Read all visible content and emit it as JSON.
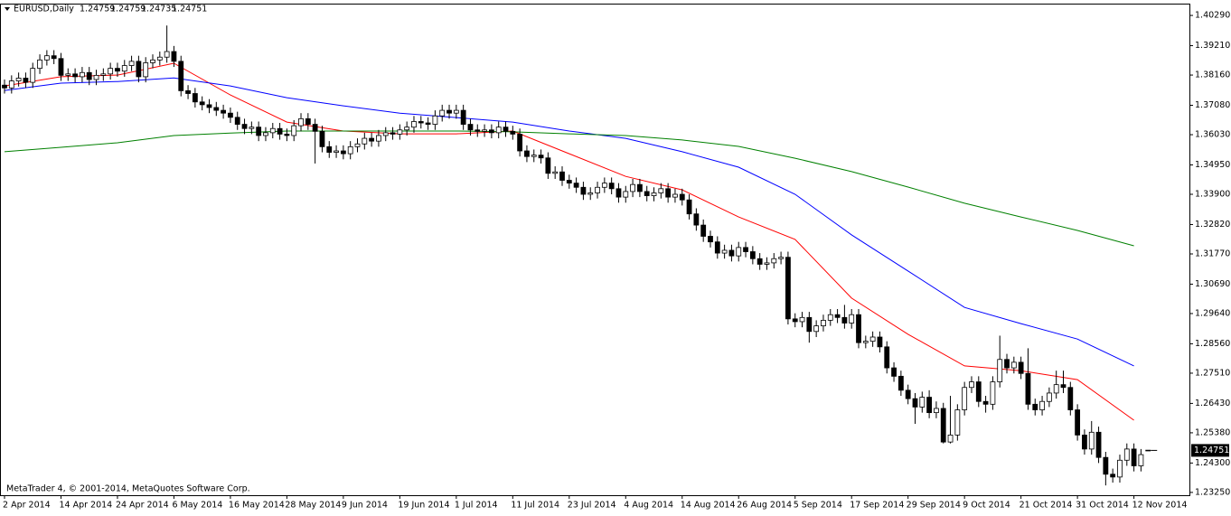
{
  "chart_data": {
    "type": "candlestick",
    "title": "EURUSD,Daily",
    "copyright": "MetaTrader 4, © 2001-2014, MetaQuotes Software Corp.",
    "categories": [
      "2 Apr 2014",
      null,
      null,
      null,
      null,
      null,
      null,
      null,
      "14 Apr 2014",
      null,
      null,
      null,
      null,
      null,
      null,
      null,
      "24 Apr 2014",
      null,
      null,
      null,
      null,
      null,
      null,
      null,
      "6 May 2014",
      null,
      null,
      null,
      null,
      null,
      null,
      null,
      "16 May 2014",
      null,
      null,
      null,
      null,
      null,
      null,
      null,
      "28 May 2014",
      null,
      null,
      null,
      null,
      null,
      null,
      null,
      "9 Jun 2014",
      null,
      null,
      null,
      null,
      null,
      null,
      null,
      "19 Jun 2014",
      null,
      null,
      null,
      null,
      null,
      null,
      null,
      "1 Jul 2014",
      null,
      null,
      null,
      null,
      null,
      null,
      null,
      "11 Jul 2014",
      null,
      null,
      null,
      null,
      null,
      null,
      null,
      "23 Jul 2014",
      null,
      null,
      null,
      null,
      null,
      null,
      null,
      "4 Aug 2014",
      null,
      null,
      null,
      null,
      null,
      null,
      null,
      "14 Aug 2014",
      null,
      null,
      null,
      null,
      null,
      null,
      null,
      "26 Aug 2014",
      null,
      null,
      null,
      null,
      null,
      null,
      null,
      "5 Sep 2014",
      null,
      null,
      null,
      null,
      null,
      null,
      null,
      "17 Sep 2014",
      null,
      null,
      null,
      null,
      null,
      null,
      null,
      "29 Sep 2014",
      null,
      null,
      null,
      null,
      null,
      null,
      null,
      "9 Oct 2014",
      null,
      null,
      null,
      null,
      null,
      null,
      null,
      "21 Oct 2014",
      null,
      null,
      null,
      null,
      null,
      null,
      null,
      "31 Oct 2014",
      null,
      null,
      null,
      null,
      null,
      null,
      null,
      "12 Nov 2014",
      null,
      null
    ],
    "candles": [
      [
        1.378,
        1.38,
        1.375,
        1.377
      ],
      [
        1.377,
        1.3815,
        1.375,
        1.3795
      ],
      [
        1.3795,
        1.3825,
        1.3775,
        1.3805
      ],
      [
        1.3805,
        1.3825,
        1.377,
        1.379
      ],
      [
        1.379,
        1.386,
        1.377,
        1.384
      ],
      [
        1.384,
        1.389,
        1.382,
        1.387
      ],
      [
        1.387,
        1.3905,
        1.385,
        1.3885
      ],
      [
        1.3885,
        1.3905,
        1.3855,
        1.3875
      ],
      [
        1.3875,
        1.3895,
        1.3795,
        1.3815
      ],
      [
        1.3815,
        1.384,
        1.3795,
        1.382
      ],
      [
        1.382,
        1.384,
        1.379,
        1.381
      ],
      [
        1.381,
        1.3845,
        1.379,
        1.3825
      ],
      [
        1.3825,
        1.3845,
        1.378,
        1.38
      ],
      [
        1.38,
        1.3835,
        1.378,
        1.3815
      ],
      [
        1.3815,
        1.384,
        1.3795,
        1.382
      ],
      [
        1.382,
        1.386,
        1.38,
        1.384
      ],
      [
        1.384,
        1.386,
        1.381,
        1.383
      ],
      [
        1.383,
        1.387,
        1.381,
        1.385
      ],
      [
        1.385,
        1.3885,
        1.383,
        1.3865
      ],
      [
        1.3865,
        1.3885,
        1.379,
        1.381
      ],
      [
        1.381,
        1.388,
        1.379,
        1.386
      ],
      [
        1.386,
        1.389,
        1.384,
        1.387
      ],
      [
        1.387,
        1.39,
        1.385,
        1.388
      ],
      [
        1.388,
        1.3993,
        1.386,
        1.39
      ],
      [
        1.39,
        1.392,
        1.3845,
        1.3865
      ],
      [
        1.3865,
        1.3885,
        1.374,
        1.376
      ],
      [
        1.376,
        1.378,
        1.373,
        1.375
      ],
      [
        1.375,
        1.377,
        1.37,
        1.372
      ],
      [
        1.372,
        1.374,
        1.369,
        1.371
      ],
      [
        1.371,
        1.373,
        1.368,
        1.37
      ],
      [
        1.37,
        1.372,
        1.367,
        1.369
      ],
      [
        1.369,
        1.371,
        1.366,
        1.368
      ],
      [
        1.368,
        1.37,
        1.3645,
        1.3665
      ],
      [
        1.3665,
        1.3685,
        1.362,
        1.364
      ],
      [
        1.364,
        1.366,
        1.3605,
        1.3625
      ],
      [
        1.3625,
        1.365,
        1.3605,
        1.363
      ],
      [
        1.363,
        1.365,
        1.358,
        1.36
      ],
      [
        1.36,
        1.363,
        1.358,
        1.361
      ],
      [
        1.361,
        1.3645,
        1.359,
        1.3625
      ],
      [
        1.3625,
        1.3645,
        1.3585,
        1.3605
      ],
      [
        1.3605,
        1.3625,
        1.358,
        1.36
      ],
      [
        1.36,
        1.3655,
        1.358,
        1.3635
      ],
      [
        1.3635,
        1.368,
        1.3615,
        1.366
      ],
      [
        1.366,
        1.368,
        1.362,
        1.364
      ],
      [
        1.364,
        1.366,
        1.35,
        1.3615
      ],
      [
        1.3615,
        1.3635,
        1.354,
        1.356
      ],
      [
        1.356,
        1.358,
        1.352,
        1.354
      ],
      [
        1.354,
        1.3565,
        1.352,
        1.3545
      ],
      [
        1.3545,
        1.3565,
        1.3515,
        1.3535
      ],
      [
        1.3535,
        1.358,
        1.3515,
        1.356
      ],
      [
        1.356,
        1.359,
        1.354,
        1.357
      ],
      [
        1.357,
        1.361,
        1.355,
        1.359
      ],
      [
        1.359,
        1.361,
        1.356,
        1.358
      ],
      [
        1.358,
        1.362,
        1.356,
        1.36
      ],
      [
        1.36,
        1.363,
        1.358,
        1.361
      ],
      [
        1.361,
        1.363,
        1.3585,
        1.3605
      ],
      [
        1.3605,
        1.364,
        1.3585,
        1.362
      ],
      [
        1.362,
        1.365,
        1.36,
        1.363
      ],
      [
        1.363,
        1.367,
        1.361,
        1.365
      ],
      [
        1.365,
        1.367,
        1.3625,
        1.3645
      ],
      [
        1.3645,
        1.3665,
        1.362,
        1.364
      ],
      [
        1.364,
        1.369,
        1.362,
        1.367
      ],
      [
        1.367,
        1.371,
        1.365,
        1.369
      ],
      [
        1.369,
        1.371,
        1.366,
        1.368
      ],
      [
        1.368,
        1.371,
        1.366,
        1.369
      ],
      [
        1.369,
        1.371,
        1.362,
        1.364
      ],
      [
        1.364,
        1.366,
        1.36,
        1.362
      ],
      [
        1.362,
        1.364,
        1.3595,
        1.3615
      ],
      [
        1.3615,
        1.364,
        1.3595,
        1.362
      ],
      [
        1.362,
        1.364,
        1.359,
        1.361
      ],
      [
        1.361,
        1.365,
        1.359,
        1.363
      ],
      [
        1.363,
        1.365,
        1.3595,
        1.3615
      ],
      [
        1.3615,
        1.3635,
        1.3585,
        1.3605
      ],
      [
        1.3605,
        1.3625,
        1.3525,
        1.3545
      ],
      [
        1.3545,
        1.3565,
        1.3505,
        1.3525
      ],
      [
        1.3525,
        1.355,
        1.3505,
        1.353
      ],
      [
        1.353,
        1.355,
        1.35,
        1.352
      ],
      [
        1.352,
        1.354,
        1.3445,
        1.3465
      ],
      [
        1.3465,
        1.349,
        1.3445,
        1.347
      ],
      [
        1.347,
        1.349,
        1.342,
        1.344
      ],
      [
        1.344,
        1.346,
        1.341,
        1.343
      ],
      [
        1.343,
        1.345,
        1.3395,
        1.3415
      ],
      [
        1.3415,
        1.3435,
        1.337,
        1.339
      ],
      [
        1.339,
        1.3415,
        1.337,
        1.3395
      ],
      [
        1.3395,
        1.3435,
        1.3375,
        1.3415
      ],
      [
        1.3415,
        1.345,
        1.3395,
        1.343
      ],
      [
        1.343,
        1.345,
        1.339,
        1.341
      ],
      [
        1.341,
        1.343,
        1.336,
        1.338
      ],
      [
        1.338,
        1.342,
        1.336,
        1.34
      ],
      [
        1.34,
        1.3445,
        1.338,
        1.3425
      ],
      [
        1.3425,
        1.3445,
        1.338,
        1.34
      ],
      [
        1.34,
        1.342,
        1.3365,
        1.3385
      ],
      [
        1.3385,
        1.3415,
        1.3365,
        1.3395
      ],
      [
        1.3395,
        1.343,
        1.3375,
        1.341
      ],
      [
        1.341,
        1.343,
        1.336,
        1.338
      ],
      [
        1.338,
        1.341,
        1.336,
        1.339
      ],
      [
        1.339,
        1.341,
        1.335,
        1.337
      ],
      [
        1.337,
        1.339,
        1.33,
        1.332
      ],
      [
        1.332,
        1.334,
        1.326,
        1.328
      ],
      [
        1.328,
        1.33,
        1.322,
        1.324
      ],
      [
        1.324,
        1.326,
        1.32,
        1.322
      ],
      [
        1.322,
        1.324,
        1.316,
        1.318
      ],
      [
        1.318,
        1.321,
        1.316,
        1.319
      ],
      [
        1.319,
        1.321,
        1.315,
        1.317
      ],
      [
        1.317,
        1.322,
        1.315,
        1.32
      ],
      [
        1.32,
        1.322,
        1.3165,
        1.3185
      ],
      [
        1.3185,
        1.3205,
        1.314,
        1.316
      ],
      [
        1.316,
        1.318,
        1.312,
        1.314
      ],
      [
        1.314,
        1.3165,
        1.312,
        1.3145
      ],
      [
        1.3145,
        1.318,
        1.3125,
        1.316
      ],
      [
        1.316,
        1.3185,
        1.314,
        1.3165
      ],
      [
        1.3165,
        1.3185,
        1.2925,
        1.2945
      ],
      [
        1.2945,
        1.2965,
        1.2915,
        1.2935
      ],
      [
        1.2935,
        1.297,
        1.2915,
        1.295
      ],
      [
        1.295,
        1.297,
        1.286,
        1.29
      ],
      [
        1.29,
        1.294,
        1.288,
        1.292
      ],
      [
        1.292,
        1.296,
        1.29,
        1.294
      ],
      [
        1.294,
        1.298,
        1.292,
        1.296
      ],
      [
        1.296,
        1.298,
        1.293,
        1.295
      ],
      [
        1.295,
        1.2995,
        1.291,
        1.293
      ],
      [
        1.293,
        1.298,
        1.291,
        1.296
      ],
      [
        1.296,
        1.298,
        1.284,
        1.286
      ],
      [
        1.286,
        1.2885,
        1.284,
        1.2865
      ],
      [
        1.2865,
        1.29,
        1.2845,
        1.288
      ],
      [
        1.288,
        1.29,
        1.2825,
        1.2845
      ],
      [
        1.2845,
        1.2865,
        1.275,
        1.277
      ],
      [
        1.277,
        1.279,
        1.272,
        1.274
      ],
      [
        1.274,
        1.276,
        1.267,
        1.269
      ],
      [
        1.269,
        1.271,
        1.264,
        1.266
      ],
      [
        1.266,
        1.268,
        1.257,
        1.263
      ],
      [
        1.263,
        1.2685,
        1.261,
        1.2665
      ],
      [
        1.2665,
        1.269,
        1.259,
        1.261
      ],
      [
        1.261,
        1.265,
        1.259,
        1.2625
      ],
      [
        1.2625,
        1.2645,
        1.25,
        1.2505
      ],
      [
        1.2505,
        1.267,
        1.25,
        1.253
      ],
      [
        1.253,
        1.264,
        1.251,
        1.262
      ],
      [
        1.262,
        1.272,
        1.26,
        1.27
      ],
      [
        1.27,
        1.274,
        1.268,
        1.272
      ],
      [
        1.272,
        1.274,
        1.263,
        1.265
      ],
      [
        1.265,
        1.267,
        1.261,
        1.264
      ],
      [
        1.264,
        1.274,
        1.262,
        1.272
      ],
      [
        1.272,
        1.2885,
        1.27,
        1.28
      ],
      [
        1.28,
        1.282,
        1.275,
        1.277
      ],
      [
        1.277,
        1.281,
        1.275,
        1.279
      ],
      [
        1.279,
        1.281,
        1.273,
        1.275
      ],
      [
        1.275,
        1.284,
        1.262,
        1.264
      ],
      [
        1.264,
        1.266,
        1.26,
        1.262
      ],
      [
        1.262,
        1.267,
        1.26,
        1.265
      ],
      [
        1.265,
        1.27,
        1.263,
        1.268
      ],
      [
        1.268,
        1.276,
        1.266,
        1.271
      ],
      [
        1.271,
        1.276,
        1.268,
        1.27
      ],
      [
        1.27,
        1.272,
        1.26,
        1.262
      ],
      [
        1.262,
        1.264,
        1.251,
        1.253
      ],
      [
        1.253,
        1.255,
        1.246,
        1.248
      ],
      [
        1.248,
        1.258,
        1.246,
        1.254
      ],
      [
        1.254,
        1.256,
        1.243,
        1.245
      ],
      [
        1.245,
        1.247,
        1.235,
        1.239
      ],
      [
        1.239,
        1.241,
        1.236,
        1.238
      ],
      [
        1.238,
        1.246,
        1.236,
        1.244
      ],
      [
        1.244,
        1.25,
        1.242,
        1.248
      ],
      [
        1.248,
        1.25,
        1.24,
        1.242
      ],
      [
        1.242,
        1.248,
        1.24,
        1.246
      ],
      [
        1.24759,
        1.24759,
        1.24735,
        1.24751
      ]
    ],
    "series": [
      {
        "color": "#ff0000",
        "x": [
          "2 Apr 2014",
          "14 Apr 2014",
          "24 Apr 2014",
          "6 May 2014",
          "16 May 2014",
          "28 May 2014",
          "9 Jun 2014",
          "19 Jun 2014",
          "1 Jul 2014",
          "11 Jul 2014",
          "23 Jul 2014",
          "4 Aug 2014",
          "14 Aug 2014",
          "26 Aug 2014",
          "5 Sep 2014",
          "17 Sep 2014",
          "29 Sep 2014",
          "9 Oct 2014",
          "21 Oct 2014",
          "31 Oct 2014",
          "12 Nov 2014"
        ],
        "values": [
          1.3777,
          1.381,
          1.3816,
          1.3858,
          1.3745,
          1.3648,
          1.3616,
          1.3606,
          1.3606,
          1.3616,
          1.3535,
          1.3454,
          1.3406,
          1.3309,
          1.3229,
          1.3019,
          1.289,
          1.2777,
          1.276,
          1.2728,
          1.2583
        ]
      },
      {
        "color": "#0000ff",
        "x": [
          "2 Apr 2014",
          "14 Apr 2014",
          "24 Apr 2014",
          "6 May 2014",
          "16 May 2014",
          "28 May 2014",
          "9 Jun 2014",
          "19 Jun 2014",
          "1 Jul 2014",
          "11 Jul 2014",
          "23 Jul 2014",
          "4 Aug 2014",
          "14 Aug 2014",
          "26 Aug 2014",
          "5 Sep 2014",
          "17 Sep 2014",
          "29 Sep 2014",
          "9 Oct 2014",
          "21 Oct 2014",
          "31 Oct 2014",
          "12 Nov 2014"
        ],
        "values": [
          1.3761,
          1.3787,
          1.3793,
          1.3806,
          1.3777,
          1.3735,
          1.3706,
          1.368,
          1.3664,
          1.3648,
          1.3616,
          1.359,
          1.3542,
          1.3487,
          1.339,
          1.3245,
          1.3116,
          1.2986,
          1.2928,
          1.2873,
          1.2777
        ]
      },
      {
        "color": "#008000",
        "x": [
          "2 Apr 2014",
          "14 Apr 2014",
          "24 Apr 2014",
          "6 May 2014",
          "16 May 2014",
          "28 May 2014",
          "9 Jun 2014",
          "19 Jun 2014",
          "1 Jul 2014",
          "11 Jul 2014",
          "23 Jul 2014",
          "4 Aug 2014",
          "14 Aug 2014",
          "26 Aug 2014",
          "5 Sep 2014",
          "17 Sep 2014",
          "29 Sep 2014",
          "9 Oct 2014",
          "21 Oct 2014",
          "31 Oct 2014",
          "12 Nov 2014"
        ],
        "values": [
          1.3542,
          1.3558,
          1.3574,
          1.36,
          1.3609,
          1.3616,
          1.3616,
          1.3616,
          1.3616,
          1.3613,
          1.3606,
          1.36,
          1.3584,
          1.3561,
          1.3519,
          1.3471,
          1.3416,
          1.3358,
          1.3309,
          1.3261,
          1.3206
        ]
      }
    ],
    "ylim": [
      1.2315,
      1.4068
    ],
    "yticks": [
      {
        "value": 1.4029,
        "label": "1.40290"
      },
      {
        "value": 1.3921,
        "label": "1.39210"
      },
      {
        "value": 1.3816,
        "label": "1.38160"
      },
      {
        "value": 1.3708,
        "label": "1.37080"
      },
      {
        "value": 1.3603,
        "label": "1.36030"
      },
      {
        "value": 1.3495,
        "label": "1.34950"
      },
      {
        "value": 1.339,
        "label": "1.33900"
      },
      {
        "value": 1.3282,
        "label": "1.32820"
      },
      {
        "value": 1.3177,
        "label": "1.31770"
      },
      {
        "value": 1.3069,
        "label": "1.30690"
      },
      {
        "value": 1.2964,
        "label": "1.29640"
      },
      {
        "value": 1.2856,
        "label": "1.28560"
      },
      {
        "value": 1.2751,
        "label": "1.27510"
      },
      {
        "value": 1.2643,
        "label": "1.26430"
      },
      {
        "value": 1.2538,
        "label": "1.25380"
      },
      {
        "value": 1.243,
        "label": "1.24300"
      },
      {
        "value": 1.2325,
        "label": "1.23250"
      }
    ],
    "up_color": "#ffffff",
    "down_color": "#000000"
  }
}
